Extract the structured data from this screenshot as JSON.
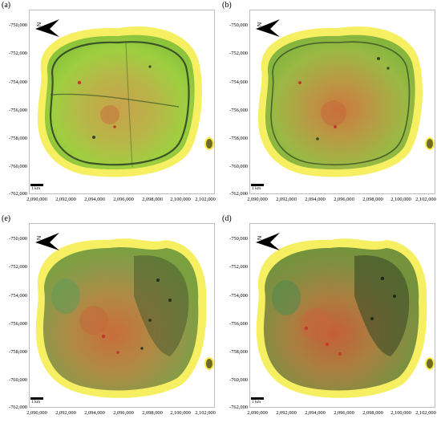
{
  "figure": {
    "panels": [
      {
        "label": "(a)"
      },
      {
        "label": "(b)"
      },
      {
        "label": "(e)"
      },
      {
        "label": "(d)"
      }
    ],
    "y_ticks": [
      "-750,000",
      "-752,000",
      "-754,000",
      "-756,000",
      "-758,000",
      "-760,000",
      "-762,000"
    ],
    "x_ticks": [
      "2,090,000",
      "2,092,000",
      "2,094,000",
      "2,096,000",
      "2,098,000",
      "2,100,000",
      "2,102,000"
    ],
    "north_label": "N",
    "scale_label": "1 km",
    "colors": {
      "halo": "#f3ec45",
      "halo_inner": "#d9d43a",
      "vegetation_a": "#a4c640",
      "soil_b": "#b59c46",
      "soil_red": "#c6663a",
      "dark_patch": "#33492a",
      "red_spot": "#c23a2e"
    },
    "icons": {
      "north_arrow": "north-arrow-icon"
    }
  }
}
